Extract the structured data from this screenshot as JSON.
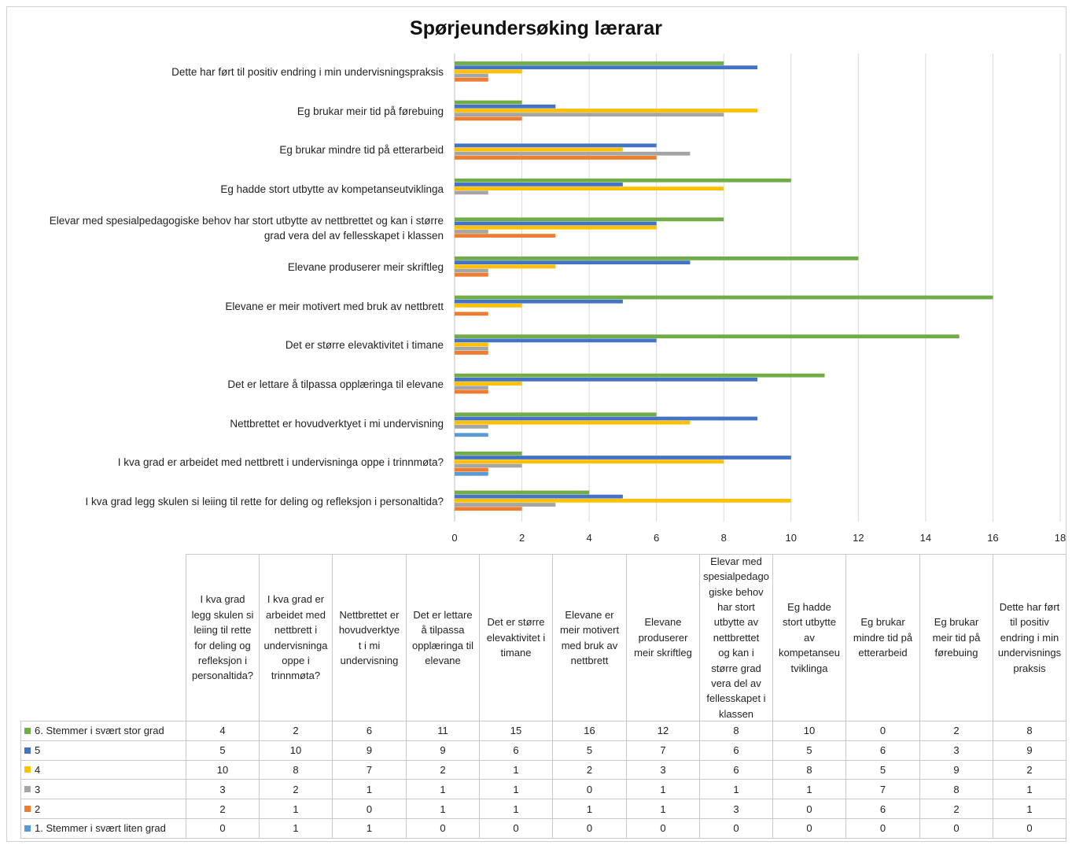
{
  "chart_data": {
    "type": "bar",
    "orientation": "horizontal",
    "title": "Spørjeundersøking lærarar",
    "categories": [
      "I kva grad legg skulen si leiing til rette for deling og refleksjon i personaltida?",
      "I kva grad er arbeidet med nettbrett i undervisninga oppe i trinnmøta?",
      "Nettbrettet er hovudverktyet i mi undervisning",
      "Det er lettare å tilpassa opplæringa til elevane",
      "Det er større elevaktivitet i timane",
      "Elevane er meir motivert med bruk av nettbrett",
      "Elevane produserer meir skriftleg",
      "Elevar med spesialpedagogiske behov har stort utbytte av nettbrettet og kan i større grad vera del av fellesskapet i klassen",
      "Eg hadde stort utbytte av kompetanseutviklinga",
      "Eg brukar mindre tid på etterarbeid",
      "Eg brukar meir tid på førebuing",
      "Dette har ført til positiv endring i min undervisningspraksis"
    ],
    "category_labels_chart": [
      [
        "I kva grad legg skulen si leiing til rette for deling og refleksjon i personaltida?"
      ],
      [
        "I kva grad er arbeidet med nettbrett i undervisninga oppe i trinnmøta?"
      ],
      [
        "Nettbrettet er hovudverktyet i mi undervisning"
      ],
      [
        "Det er lettare å tilpassa opplæringa til elevane"
      ],
      [
        "Det er større elevaktivitet i timane"
      ],
      [
        "Elevane er meir motivert med bruk av nettbrett"
      ],
      [
        "Elevane produserer meir skriftleg"
      ],
      [
        "Elevar med spesialpedagogiske behov har stort utbytte av nettbrettet og kan i større",
        "grad vera del av fellesskapet i klassen"
      ],
      [
        "Eg hadde stort utbytte av kompetanseutviklinga"
      ],
      [
        "Eg brukar mindre tid på etterarbeid"
      ],
      [
        "Eg brukar meir tid på førebuing"
      ],
      [
        "Dette har ført til positiv endring i min undervisningspraksis"
      ]
    ],
    "category_labels_table": [
      [
        "I kva grad",
        "legg skulen si",
        "leiing til rette",
        "for deling og",
        "refleksjon i",
        "personaltida?"
      ],
      [
        "I kva grad er",
        "arbeidet med",
        "nettbrett i",
        "undervisninga",
        "oppe i",
        "trinnmøta?"
      ],
      [
        "Nettbrettet er",
        "hovudverktye",
        "t i mi",
        "undervisning"
      ],
      [
        "Det er lettare",
        "å tilpassa",
        "opplæringa til",
        "elevane"
      ],
      [
        "Det er større",
        "elevaktivitet i",
        "timane"
      ],
      [
        "Elevane er",
        "meir motivert",
        "med bruk av",
        "nettbrett"
      ],
      [
        "Elevane",
        "produserer",
        "meir skriftleg"
      ],
      [
        "Elevar med",
        "spesialpedago",
        "giske behov",
        "har stort",
        "utbytte av",
        "nettbrettet",
        "og kan i",
        "større grad",
        "vera del av",
        "fellesskapet i",
        "klassen"
      ],
      [
        "Eg hadde",
        "stort utbytte",
        "av",
        "kompetanseu",
        "tviklinga"
      ],
      [
        "Eg brukar",
        "mindre tid på",
        "etterarbeid"
      ],
      [
        "Eg brukar",
        "meir tid på",
        "førebuing"
      ],
      [
        "Dette har ført",
        "til positiv",
        "endring i min",
        "undervisnings",
        "praksis"
      ]
    ],
    "series": [
      {
        "name": "6. Stemmer i svært stor grad",
        "color": "#70AD47",
        "values": [
          4,
          2,
          6,
          11,
          15,
          16,
          12,
          8,
          10,
          0,
          2,
          8
        ]
      },
      {
        "name": "5",
        "color": "#4472C4",
        "values": [
          5,
          10,
          9,
          9,
          6,
          5,
          7,
          6,
          5,
          6,
          3,
          9
        ]
      },
      {
        "name": "4",
        "color": "#FFC000",
        "values": [
          10,
          8,
          7,
          2,
          1,
          2,
          3,
          6,
          8,
          5,
          9,
          2
        ]
      },
      {
        "name": "3",
        "color": "#A5A5A5",
        "values": [
          3,
          2,
          1,
          1,
          1,
          0,
          1,
          1,
          1,
          7,
          8,
          1
        ]
      },
      {
        "name": "2",
        "color": "#ED7D31",
        "values": [
          2,
          1,
          0,
          1,
          1,
          1,
          1,
          3,
          0,
          6,
          2,
          1
        ]
      },
      {
        "name": "1. Stemmer i svært liten grad",
        "color": "#5B9BD5",
        "values": [
          0,
          1,
          1,
          0,
          0,
          0,
          0,
          0,
          0,
          0,
          0,
          0
        ]
      }
    ],
    "xlim": [
      0,
      18
    ],
    "xticks": [
      0,
      2,
      4,
      6,
      8,
      10,
      12,
      14,
      16,
      18
    ],
    "grid": "vertical",
    "legend": "data table below chart"
  }
}
